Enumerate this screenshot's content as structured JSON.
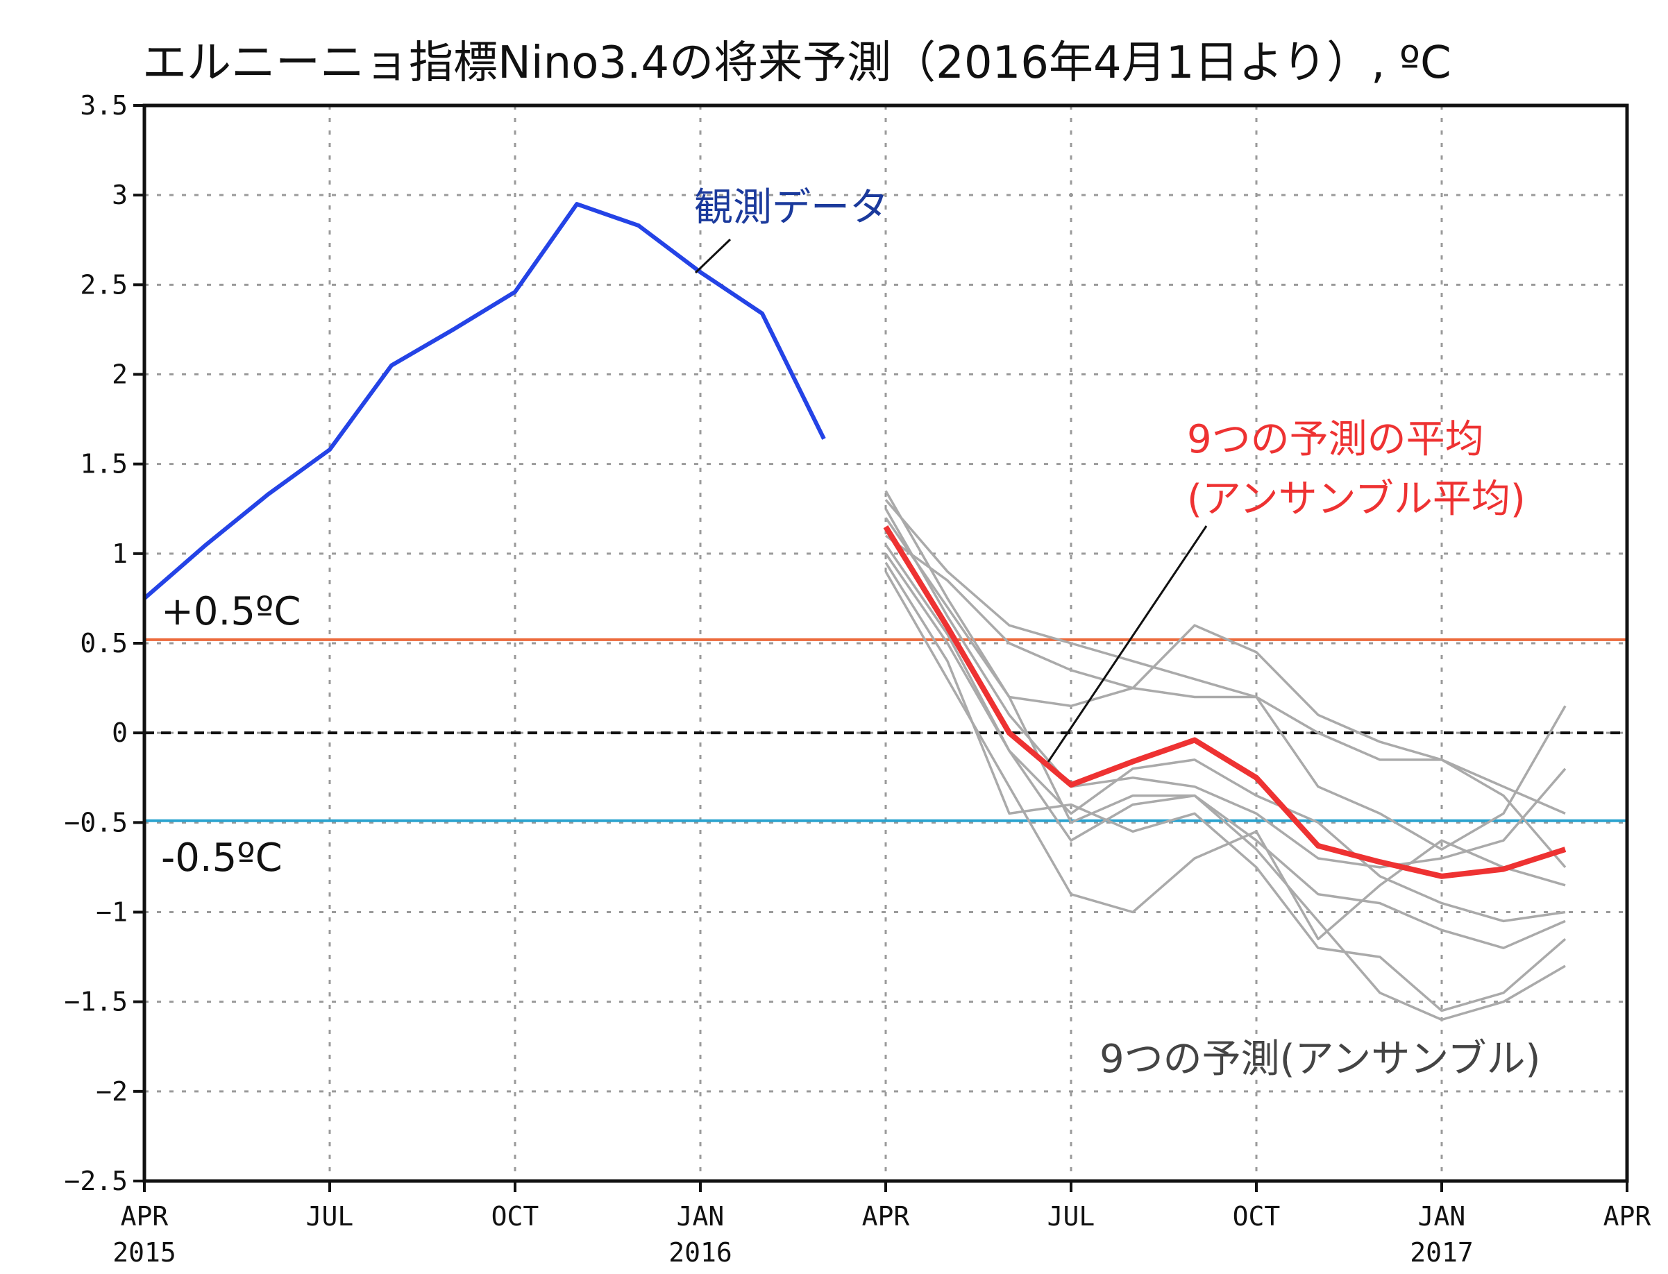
{
  "chart_data": {
    "type": "line",
    "title": "エルニーニョ指標Nino3.4の将来予測（2016年4月1日より）, ºC",
    "xlabel": "",
    "ylabel": "",
    "ylim": [
      -2.5,
      3.5
    ],
    "xlim": [
      "2015-04",
      "2017-04"
    ],
    "grid": true,
    "yticks": [
      "3.5",
      "3",
      "2.5",
      "2",
      "1.5",
      "1",
      "0.5",
      "0",
      "-0.5",
      "-1",
      "-1.5",
      "-2",
      "-2.5"
    ],
    "xticks": [
      {
        "month": "APR",
        "year": "2015"
      },
      {
        "month": "JUL",
        "year": ""
      },
      {
        "month": "OCT",
        "year": ""
      },
      {
        "month": "JAN",
        "year": "2016"
      },
      {
        "month": "APR",
        "year": ""
      },
      {
        "month": "JUL",
        "year": ""
      },
      {
        "month": "OCT",
        "year": ""
      },
      {
        "month": "JAN",
        "year": "2017"
      },
      {
        "month": "APR",
        "year": ""
      }
    ],
    "reference_lines": [
      {
        "label": "+0.5ºC",
        "y": 0.52,
        "color": "#ec6a3c"
      },
      {
        "label": "",
        "y": 0.0,
        "color": "#111111",
        "dashed": true
      },
      {
        "label": "-0.5ºC",
        "y": -0.49,
        "color": "#2aa3cf"
      }
    ],
    "observed": {
      "label": "観測データ",
      "color": "#2443e6",
      "x": [
        "2015-04",
        "2015-05",
        "2015-06",
        "2015-07",
        "2015-08",
        "2015-09",
        "2015-10",
        "2015-11",
        "2015-12",
        "2016-01",
        "2016-02",
        "2016-03"
      ],
      "values": [
        0.75,
        1.05,
        1.33,
        1.58,
        2.05,
        2.25,
        2.46,
        2.95,
        2.83,
        2.57,
        2.34,
        1.64
      ]
    },
    "ensemble_mean": {
      "label": "9つの予測の平均\n(アンサンブル平均)",
      "color": "#ee3232",
      "x": [
        "2016-04",
        "2016-05",
        "2016-06",
        "2016-07",
        "2016-08",
        "2016-09",
        "2016-10",
        "2016-11",
        "2016-12",
        "2017-01",
        "2017-02",
        "2017-03"
      ],
      "values": [
        1.15,
        0.59,
        0.0,
        -0.29,
        -0.16,
        -0.04,
        -0.25,
        -0.63,
        -0.72,
        -0.8,
        -0.76,
        -0.65
      ]
    },
    "ensemble": {
      "label": "9つの予測(アンサンブル)",
      "color": "#aaaaaa",
      "x": [
        "2016-04",
        "2016-05",
        "2016-06",
        "2016-07",
        "2016-08",
        "2016-09",
        "2016-10",
        "2016-11",
        "2016-12",
        "2017-01",
        "2017-02",
        "2017-03"
      ],
      "members": [
        [
          1.3,
          0.9,
          0.6,
          0.5,
          0.4,
          0.3,
          0.2,
          0.0,
          -0.15,
          -0.15,
          -0.35,
          -0.75
        ],
        [
          1.2,
          0.7,
          0.2,
          0.15,
          0.25,
          0.6,
          0.45,
          0.1,
          -0.05,
          -0.15,
          -0.3,
          -0.45
        ],
        [
          1.1,
          0.85,
          0.5,
          0.35,
          0.25,
          0.2,
          0.2,
          -0.3,
          -0.45,
          -0.65,
          -0.45,
          0.15
        ],
        [
          1.05,
          0.55,
          -0.1,
          -0.45,
          -0.2,
          -0.15,
          -0.35,
          -0.5,
          -0.8,
          -0.95,
          -1.05,
          -1.0
        ],
        [
          1.25,
          0.65,
          0.1,
          -0.3,
          -0.25,
          -0.3,
          -0.45,
          -0.7,
          -0.75,
          -0.7,
          -0.6,
          -0.2
        ],
        [
          1.0,
          0.5,
          -0.1,
          -0.6,
          -0.4,
          -0.35,
          -0.6,
          -0.9,
          -0.95,
          -1.1,
          -1.2,
          -1.05
        ],
        [
          0.95,
          0.4,
          -0.45,
          -0.4,
          -0.55,
          -0.45,
          -0.75,
          -1.2,
          -1.25,
          -1.55,
          -1.45,
          -1.15
        ],
        [
          1.35,
          0.75,
          0.2,
          -0.5,
          -0.35,
          -0.35,
          -0.65,
          -1.05,
          -1.45,
          -1.6,
          -1.5,
          -1.3
        ],
        [
          0.9,
          0.3,
          -0.3,
          -0.9,
          -1.0,
          -0.7,
          -0.55,
          -1.15,
          -0.85,
          -0.6,
          -0.75,
          -0.85
        ]
      ]
    }
  }
}
